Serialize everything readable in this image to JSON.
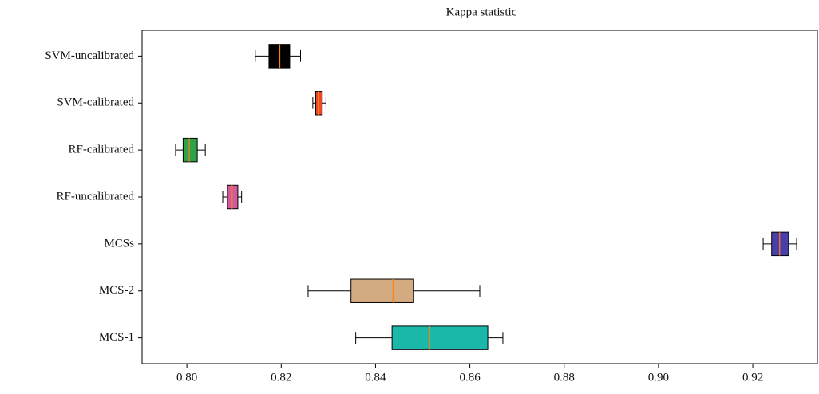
{
  "chart_data": {
    "type": "boxplot",
    "title": "Kappa statistic",
    "categories": [
      "SVM-uncalibrated",
      "SVM-calibrated",
      "RF-calibrated",
      "RF-uncalibrated",
      "MCSs",
      "MCS-2",
      "MCS-1"
    ],
    "boxes": [
      {
        "whislo": 0.8145,
        "q1": 0.8174,
        "med": 0.8197,
        "q3": 0.8218,
        "whishi": 0.8241,
        "color": "#000000"
      },
      {
        "whislo": 0.8267,
        "q1": 0.8273,
        "med": 0.828,
        "q3": 0.8287,
        "whishi": 0.8295,
        "color": "#e8472b"
      },
      {
        "whislo": 0.7976,
        "q1": 0.7992,
        "med": 0.8005,
        "q3": 0.8022,
        "whishi": 0.8039,
        "color": "#2ca24a"
      },
      {
        "whislo": 0.8076,
        "q1": 0.8086,
        "med": 0.8096,
        "q3": 0.8108,
        "whishi": 0.8116,
        "color": "#cf5aa2"
      },
      {
        "whislo": 0.9222,
        "q1": 0.924,
        "med": 0.9257,
        "q3": 0.9276,
        "whishi": 0.9293,
        "color": "#4a3fa8"
      },
      {
        "whislo": 0.8257,
        "q1": 0.8348,
        "med": 0.8437,
        "q3": 0.8481,
        "whishi": 0.8621,
        "color": "#d4aa80"
      },
      {
        "whislo": 0.8358,
        "q1": 0.8435,
        "med": 0.8515,
        "q3": 0.8638,
        "whishi": 0.867,
        "color": "#1ab8a8"
      }
    ],
    "median_color": "#ff7f0e",
    "xlim": [
      0.7905,
      0.9337
    ],
    "xticks": [
      {
        "value": 0.8,
        "label": "0.80"
      },
      0.82,
      0.84,
      0.86,
      0.88,
      {
        "value": 0.9,
        "label": "0.90"
      },
      0.92
    ]
  }
}
